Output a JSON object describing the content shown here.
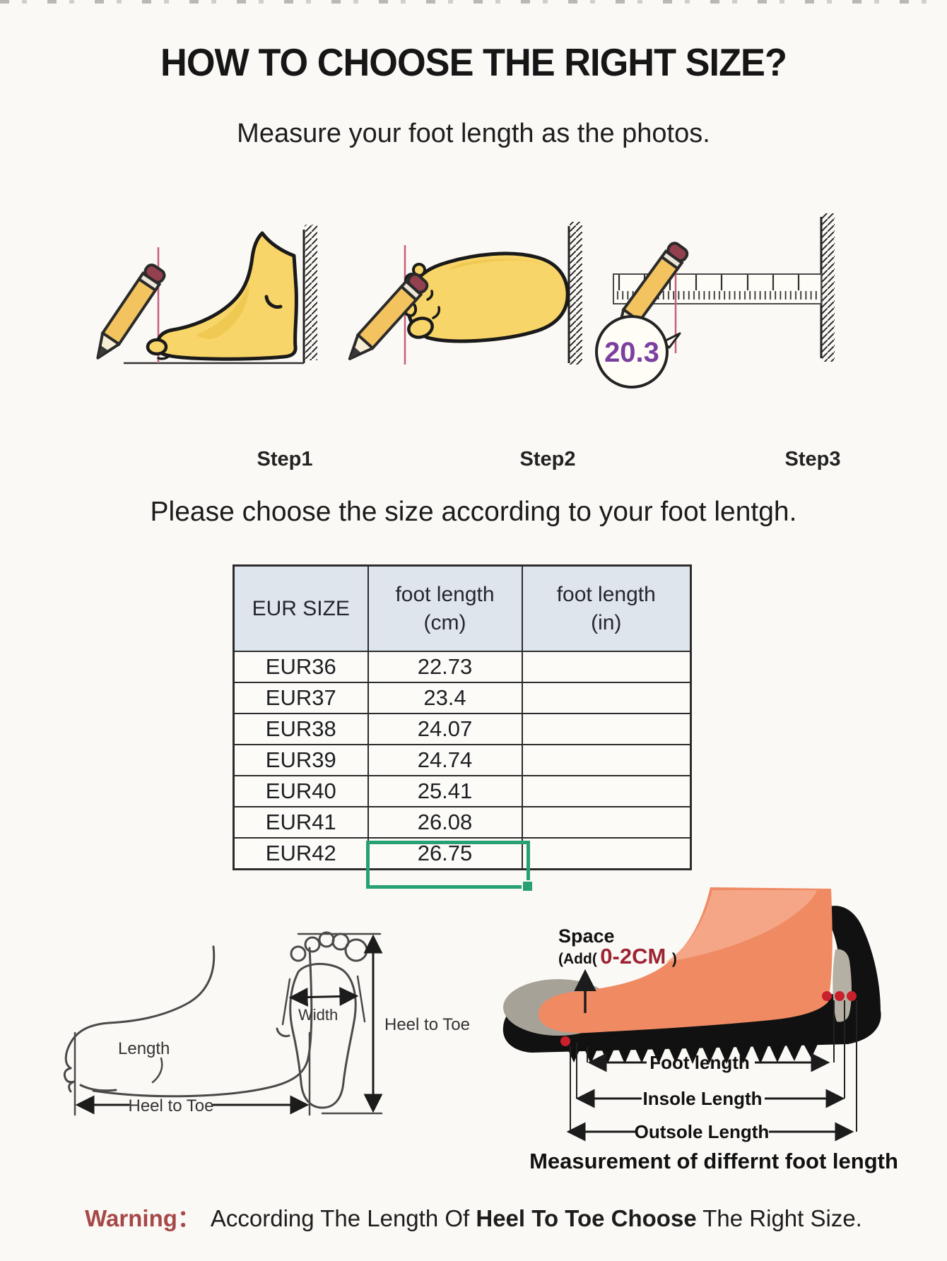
{
  "page": {
    "title": "HOW TO CHOOSE THE RIGHT SIZE?",
    "subtitle": "Measure your foot length as the photos.",
    "table_intro": "Please choose the size according to your foot lentgh."
  },
  "steps": [
    {
      "label": "Step1"
    },
    {
      "label": "Step2"
    },
    {
      "label": "Step3",
      "measured_value": "20.3"
    }
  ],
  "size_table": {
    "headers": [
      {
        "title": "EUR SIZE",
        "unit": ""
      },
      {
        "title": "foot length",
        "unit": "(cm)"
      },
      {
        "title": "foot length",
        "unit": "(in)"
      }
    ],
    "rows": [
      [
        "EUR36",
        "22.73",
        ""
      ],
      [
        "EUR37",
        "23.4",
        ""
      ],
      [
        "EUR38",
        "24.07",
        ""
      ],
      [
        "EUR39",
        "24.74",
        ""
      ],
      [
        "EUR40",
        "25.41",
        ""
      ],
      [
        "EUR41",
        "26.08",
        ""
      ],
      [
        "EUR42",
        "26.75",
        ""
      ]
    ],
    "highlighted_cell": {
      "row_label": "EUR42",
      "column": "foot length (cm)",
      "value": "26.75",
      "highlight_color": "#27a173"
    }
  },
  "diagrams": {
    "side_foot": {
      "length_label": "Length",
      "heel_to_toe_label": "Heel to Toe"
    },
    "footprint": {
      "width_label": "Width",
      "heel_to_toe_label": "Heel to Toe"
    },
    "shoe": {
      "space_label": "Space",
      "add_prefix": "(Add(",
      "add_value": " 0-2CM ",
      "add_suffix": ")",
      "foot_length_label": "Foot length",
      "insole_length_label": "Insole Length",
      "outsole_length_label": "Outsole Length",
      "caption": "Measurement of differnt foot length"
    }
  },
  "warning": {
    "label": "Warning：",
    "text_before_bold": "According The Length Of ",
    "bold_text": "Heel To Toe Choose",
    "text_after_bold": " The Right Size."
  },
  "colors": {
    "accent_green": "#27a173",
    "warning_red": "#a64848",
    "measure_purple": "#7b3fa0",
    "guide_pink": "#c4607a",
    "table_header_bg": "#dfe5ed"
  }
}
